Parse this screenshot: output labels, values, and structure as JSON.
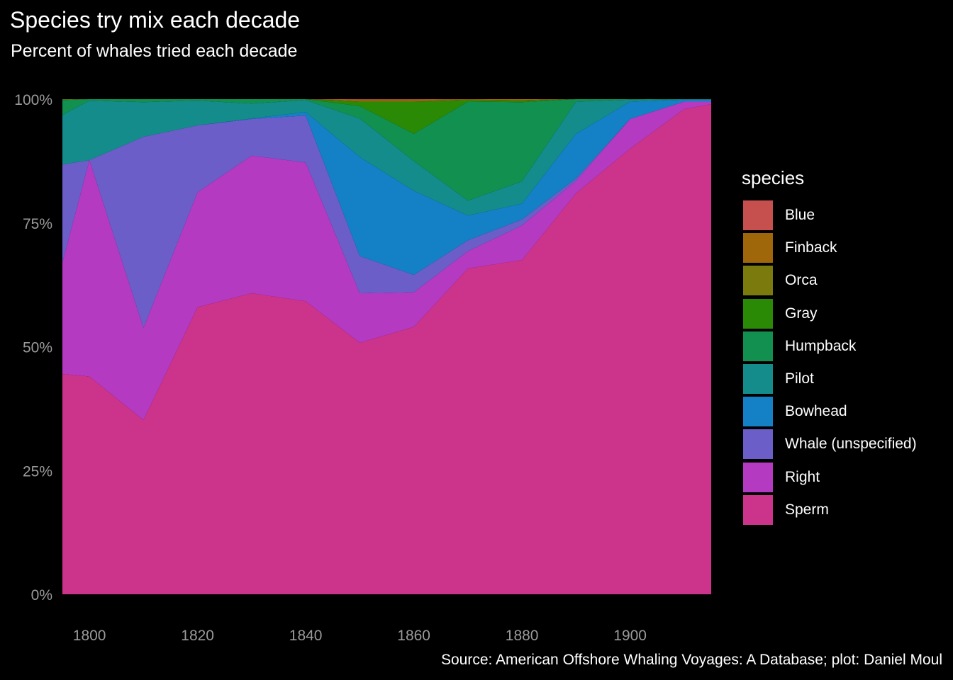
{
  "title": "Species try mix each decade",
  "subtitle": "Percent of whales tried each decade",
  "caption": "Source: American Offshore Whaling Voyages: A Database; plot: Daniel Moul",
  "legend": {
    "title": "species",
    "items": [
      {
        "label": "Blue",
        "color": "#c5504e"
      },
      {
        "label": "Finback",
        "color": "#a0660a"
      },
      {
        "label": "Orca",
        "color": "#7b7a0c"
      },
      {
        "label": "Gray",
        "color": "#2a8a05"
      },
      {
        "label": "Humpback",
        "color": "#129050"
      },
      {
        "label": "Pilot",
        "color": "#148c8c"
      },
      {
        "label": "Bowhead",
        "color": "#1480c6"
      },
      {
        "label": "Whale (unspecified)",
        "color": "#6b5ec9"
      },
      {
        "label": "Right",
        "color": "#b43ac2"
      },
      {
        "label": "Sperm",
        "color": "#cc338a"
      }
    ]
  },
  "chart_data": {
    "type": "area",
    "stacked": true,
    "normalized": true,
    "title": "Species try mix each decade",
    "subtitle": "Percent of whales tried each decade",
    "xlabel": "",
    "ylabel": "",
    "x": [
      1795,
      1800,
      1810,
      1820,
      1830,
      1840,
      1850,
      1860,
      1870,
      1880,
      1890,
      1900,
      1910,
      1915
    ],
    "xlim": [
      1795,
      1915
    ],
    "ylim": [
      0,
      1
    ],
    "x_ticks": [
      1800,
      1820,
      1840,
      1860,
      1880,
      1900
    ],
    "x_tick_labels": [
      "1800",
      "1820",
      "1840",
      "1860",
      "1880",
      "1900"
    ],
    "y_ticks": [
      0,
      0.25,
      0.5,
      0.75,
      1
    ],
    "y_tick_labels": [
      "0%",
      "25%",
      "50%",
      "75%",
      "100%"
    ],
    "grid": false,
    "legend_position": "right",
    "series": [
      {
        "name": "Sperm",
        "color": "#cc338a",
        "values": [
          0.445,
          0.44,
          0.352,
          0.58,
          0.608,
          0.592,
          0.508,
          0.54,
          0.658,
          0.675,
          0.81,
          0.9,
          0.98,
          0.99
        ]
      },
      {
        "name": "Right",
        "color": "#b43ac2",
        "values": [
          0.225,
          0.437,
          0.186,
          0.232,
          0.278,
          0.28,
          0.1,
          0.07,
          0.035,
          0.07,
          0.025,
          0.06,
          0.015,
          0.005
        ]
      },
      {
        "name": "Whale (unspecified)",
        "color": "#6b5ec9",
        "values": [
          0.198,
          0.0,
          0.386,
          0.135,
          0.074,
          0.095,
          0.075,
          0.035,
          0.022,
          0.012,
          0.005,
          0.0,
          0.0,
          0.0
        ]
      },
      {
        "name": "Bowhead",
        "color": "#1480c6",
        "values": [
          0.0,
          0.0,
          0.0,
          0.0,
          0.001,
          0.007,
          0.2,
          0.17,
          0.05,
          0.032,
          0.09,
          0.035,
          0.004,
          0.004
        ]
      },
      {
        "name": "Pilot",
        "color": "#148c8c",
        "values": [
          0.1,
          0.12,
          0.07,
          0.05,
          0.03,
          0.024,
          0.078,
          0.06,
          0.03,
          0.045,
          0.065,
          0.004,
          0.001,
          0.001
        ]
      },
      {
        "name": "Humpback",
        "color": "#129050",
        "values": [
          0.03,
          0.003,
          0.006,
          0.003,
          0.009,
          0.002,
          0.025,
          0.055,
          0.2,
          0.16,
          0.005,
          0.001,
          0.0,
          0.0
        ]
      },
      {
        "name": "Gray",
        "color": "#2a8a05",
        "values": [
          0.001,
          0.0,
          0.0,
          0.0,
          0.0,
          0.0,
          0.009,
          0.065,
          0.003,
          0.003,
          0.0,
          0.0,
          0.0,
          0.0
        ]
      },
      {
        "name": "Orca",
        "color": "#7b7a0c",
        "values": [
          0.001,
          0.0,
          0.0,
          0.0,
          0.0,
          0.0,
          0.001,
          0.001,
          0.001,
          0.001,
          0.0,
          0.0,
          0.0,
          0.0
        ]
      },
      {
        "name": "Finback",
        "color": "#a0660a",
        "values": [
          0.0,
          0.0,
          0.0,
          0.0,
          0.0,
          0.0,
          0.003,
          0.003,
          0.001,
          0.002,
          0.0,
          0.0,
          0.0,
          0.0
        ]
      },
      {
        "name": "Blue",
        "color": "#c5504e",
        "values": [
          0.0,
          0.0,
          0.0,
          0.0,
          0.0,
          0.0,
          0.001,
          0.001,
          0.0,
          0.0,
          0.0,
          0.0,
          0.0,
          0.0
        ]
      }
    ]
  }
}
